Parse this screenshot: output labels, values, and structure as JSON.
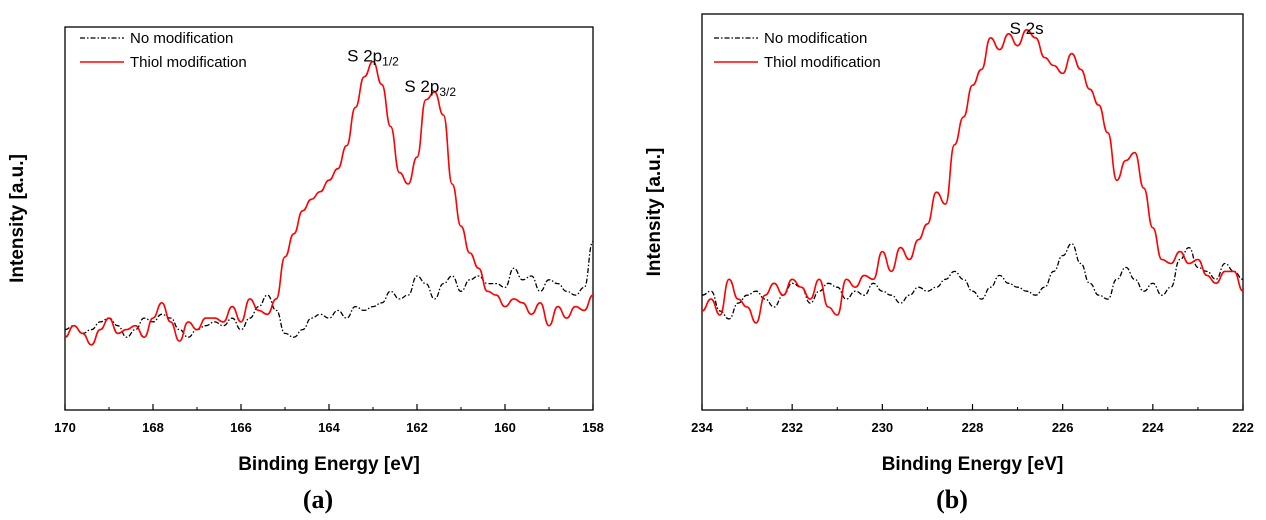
{
  "chart_data": [
    {
      "type": "line",
      "panel_label": "a",
      "xlabel": "Binding Energy [eV]",
      "ylabel": "Intensity [a.u.]",
      "xlim": [
        170,
        158
      ],
      "ylim": [
        0,
        100
      ],
      "x_ticks": [
        170,
        168,
        166,
        164,
        162,
        160,
        158
      ],
      "y_tick_labels": false,
      "legend": {
        "placement": "top-left"
      },
      "annotations": [
        {
          "main": "S 2p",
          "sub": "1/2",
          "x": 163.0,
          "y": 91
        },
        {
          "main": "S 2p",
          "sub": "3/2",
          "x": 161.7,
          "y": 83
        }
      ],
      "series": [
        {
          "name": "No modification",
          "color": "#000000",
          "style": "dash-dot",
          "x": [
            170,
            169.8,
            169.6,
            169.4,
            169.2,
            169.0,
            168.8,
            168.6,
            168.4,
            168.2,
            168.0,
            167.8,
            167.6,
            167.4,
            167.2,
            167.0,
            166.8,
            166.6,
            166.4,
            166.2,
            166.0,
            165.8,
            165.6,
            165.4,
            165.2,
            165.0,
            164.8,
            164.6,
            164.4,
            164.2,
            164.0,
            163.8,
            163.6,
            163.4,
            163.2,
            163.0,
            162.8,
            162.6,
            162.4,
            162.2,
            162.0,
            161.8,
            161.6,
            161.4,
            161.2,
            161.0,
            160.8,
            160.6,
            160.4,
            160.2,
            160.0,
            159.8,
            159.6,
            159.4,
            159.2,
            159.0,
            158.8,
            158.6,
            158.4,
            158.2,
            158.0
          ],
          "y": [
            21,
            22,
            20,
            21,
            23,
            24,
            22,
            19,
            21,
            24,
            23,
            25,
            24,
            21,
            19,
            21,
            22,
            23,
            22,
            24,
            21,
            24,
            27,
            30,
            26,
            20,
            19,
            21,
            24,
            25,
            24,
            26,
            24,
            27,
            26,
            27,
            28,
            31,
            29,
            30,
            35,
            33,
            29,
            33,
            35,
            31,
            34,
            35,
            33,
            33,
            32,
            37,
            34,
            35,
            31,
            34,
            33,
            31,
            30,
            32,
            44
          ],
          "ylim_note": "y in plot units"
        },
        {
          "name": "Thiol modification",
          "color": "#ff0000",
          "style": "solid",
          "x": [
            170,
            169.8,
            169.6,
            169.4,
            169.2,
            169.0,
            168.8,
            168.6,
            168.4,
            168.2,
            168.0,
            167.8,
            167.6,
            167.4,
            167.2,
            167.0,
            166.8,
            166.6,
            166.4,
            166.2,
            166.0,
            165.8,
            165.6,
            165.4,
            165.2,
            165.0,
            164.8,
            164.6,
            164.4,
            164.2,
            164.0,
            163.8,
            163.6,
            163.4,
            163.2,
            163.0,
            162.8,
            162.6,
            162.4,
            162.2,
            162.0,
            161.8,
            161.6,
            161.4,
            161.2,
            161.0,
            160.8,
            160.6,
            160.4,
            160.2,
            160.0,
            159.8,
            159.6,
            159.4,
            159.2,
            159.0,
            158.8,
            158.6,
            158.4,
            158.2,
            158.0
          ],
          "y": [
            19,
            22,
            20,
            17,
            21,
            24,
            20,
            21,
            22,
            19,
            24,
            28,
            23,
            18,
            23,
            21,
            24,
            24,
            23,
            27,
            23,
            29,
            26,
            25,
            29,
            40,
            46,
            52,
            55,
            57,
            60,
            63,
            69,
            79,
            87,
            91,
            85,
            74,
            62,
            59,
            66,
            81,
            83,
            77,
            59,
            48,
            41,
            37,
            31,
            30,
            27,
            29,
            28,
            25,
            28,
            22,
            27,
            24,
            27,
            26,
            30
          ]
        }
      ]
    },
    {
      "type": "line",
      "panel_label": "b",
      "xlabel": "Binding Energy [eV]",
      "ylabel": "Intensity [a.u.]",
      "xlim": [
        234,
        222
      ],
      "ylim": [
        0,
        100
      ],
      "x_ticks": [
        234,
        232,
        230,
        228,
        226,
        224,
        222
      ],
      "y_tick_labels": false,
      "legend": {
        "placement": "top-left"
      },
      "annotations": [
        {
          "main": "S 2s",
          "sub": "",
          "x": 226.8,
          "y": 95
        }
      ],
      "series": [
        {
          "name": "No modification",
          "color": "#000000",
          "style": "dash-dot",
          "x": [
            234,
            233.8,
            233.6,
            233.4,
            233.2,
            233.0,
            232.8,
            232.6,
            232.4,
            232.2,
            232.0,
            231.8,
            231.6,
            231.4,
            231.2,
            231.0,
            230.8,
            230.6,
            230.4,
            230.2,
            230.0,
            229.8,
            229.6,
            229.4,
            229.2,
            229.0,
            228.8,
            228.6,
            228.4,
            228.2,
            228.0,
            227.8,
            227.6,
            227.4,
            227.2,
            227.0,
            226.8,
            226.6,
            226.4,
            226.2,
            226.0,
            225.8,
            225.6,
            225.4,
            225.2,
            225.0,
            224.8,
            224.6,
            224.4,
            224.2,
            224.0,
            223.8,
            223.6,
            223.4,
            223.2,
            223.0,
            222.8,
            222.6,
            222.4,
            222.2,
            222.0
          ],
          "y": [
            29,
            30,
            25,
            23,
            27,
            29,
            30,
            28,
            26,
            29,
            32,
            31,
            27,
            30,
            32,
            31,
            28,
            30,
            29,
            32,
            30,
            29,
            27,
            29,
            31,
            30,
            31,
            33,
            35,
            33,
            30,
            28,
            31,
            34,
            32,
            31,
            30,
            29,
            31,
            35,
            39,
            42,
            37,
            32,
            29,
            28,
            33,
            36,
            33,
            30,
            32,
            29,
            31,
            38,
            41,
            36,
            35,
            33,
            37,
            35,
            33
          ]
        },
        {
          "name": "Thiol modification",
          "color": "#ff0000",
          "style": "solid",
          "x": [
            234,
            233.8,
            233.6,
            233.4,
            233.2,
            233.0,
            232.8,
            232.6,
            232.4,
            232.2,
            232.0,
            231.8,
            231.6,
            231.4,
            231.2,
            231.0,
            230.8,
            230.6,
            230.4,
            230.2,
            230.0,
            229.8,
            229.6,
            229.4,
            229.2,
            229.0,
            228.8,
            228.6,
            228.4,
            228.2,
            228.0,
            227.8,
            227.6,
            227.4,
            227.2,
            227.0,
            226.8,
            226.6,
            226.4,
            226.2,
            226.0,
            225.8,
            225.6,
            225.4,
            225.2,
            225.0,
            224.8,
            224.6,
            224.4,
            224.2,
            224.0,
            223.8,
            223.6,
            223.4,
            223.2,
            223.0,
            222.8,
            222.6,
            222.4,
            222.2,
            222.0
          ],
          "y": [
            25,
            28,
            24,
            33,
            28,
            26,
            22,
            29,
            32,
            29,
            33,
            31,
            28,
            33,
            26,
            24,
            33,
            31,
            34,
            33,
            40,
            35,
            41,
            38,
            43,
            47,
            55,
            52,
            67,
            74,
            82,
            86,
            94,
            91,
            95,
            92,
            96,
            94,
            89,
            87,
            85,
            90,
            86,
            81,
            77,
            70,
            58,
            63,
            65,
            56,
            46,
            38,
            37,
            40,
            37,
            38,
            34,
            32,
            35,
            35,
            30
          ]
        }
      ]
    }
  ]
}
